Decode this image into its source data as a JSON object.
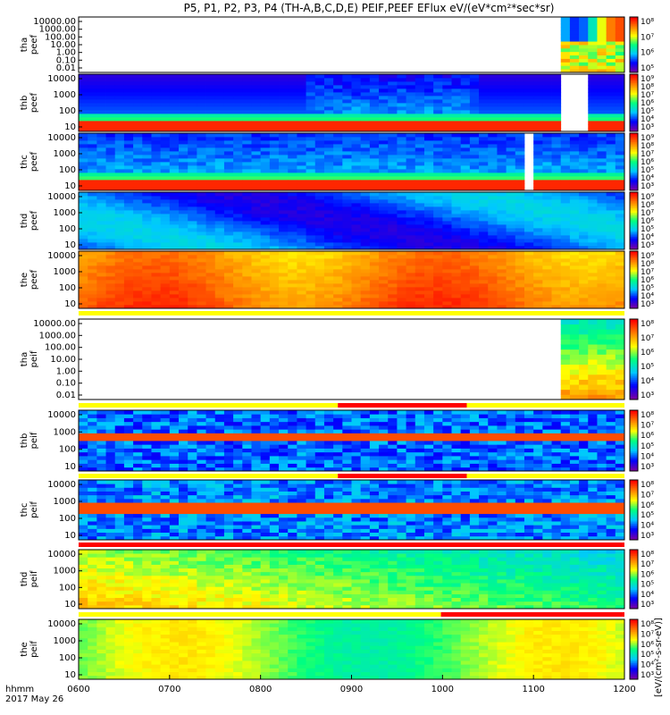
{
  "chart_data": {
    "type": "heatmap",
    "title": "P5, P1, P2, P3, P4 (TH-A,B,C,D,E) PEIF,PEEF EFlux eV/(eV*cm²*sec*sr)",
    "x_tick_labels": [
      "0600",
      "0700",
      "0800",
      "0900",
      "1000",
      "1100",
      "1200"
    ],
    "x_axis_label_line1": "hhmm",
    "x_axis_label_line2": "2017 May 26",
    "xlim_hhmm": [
      "0600",
      "1200"
    ],
    "y_scale": "log",
    "colorbar_scale": "log",
    "colorbar_label": "[eV/(cm²-s-sr-eV)]",
    "colormap": [
      "#7b00a0",
      "#0000ff",
      "#00c8ff",
      "#00ff80",
      "#ffff00",
      "#ff8000",
      "#ff0000"
    ],
    "ytick_sets": {
      "tha": [
        "10000.00",
        "1000.00",
        "100.00",
        "10.00",
        "1.00",
        "0.10",
        "0.01"
      ],
      "std": [
        "10000",
        "1000",
        "100",
        "10"
      ]
    },
    "panels": [
      {
        "label": [
          "tha",
          "peef"
        ],
        "ylim_eV": [
          0.01,
          30000
        ],
        "cbar_ticks": [
          "10⁸",
          "10⁷",
          "10⁶",
          "10⁵"
        ]
      },
      {
        "label": [
          "thb",
          "peef"
        ],
        "ylim_eV": [
          5,
          30000
        ],
        "cbar_ticks": [
          "10⁹",
          "10⁸",
          "10⁷",
          "10⁶",
          "10⁵",
          "10⁴",
          "10³"
        ]
      },
      {
        "label": [
          "thc",
          "peef"
        ],
        "ylim_eV": [
          5,
          30000
        ],
        "cbar_ticks": [
          "10⁹",
          "10⁸",
          "10⁷",
          "10⁶",
          "10⁵",
          "10⁴",
          "10³"
        ]
      },
      {
        "label": [
          "thd",
          "peef"
        ],
        "ylim_eV": [
          5,
          30000
        ],
        "cbar_ticks": [
          "10⁹",
          "10⁸",
          "10⁷",
          "10⁶",
          "10⁵",
          "10⁴",
          "10³"
        ]
      },
      {
        "label": [
          "the",
          "peef"
        ],
        "ylim_eV": [
          5,
          30000
        ],
        "cbar_ticks": [
          "10⁹",
          "10⁸",
          "10⁷",
          "10⁶",
          "10⁵",
          "10⁴",
          "10³"
        ]
      },
      {
        "label": [
          "tha",
          "peif"
        ],
        "ylim_eV": [
          0.01,
          30000
        ],
        "cbar_ticks": [
          "10⁸",
          "10⁷",
          "10⁶",
          "10⁵",
          "10⁴",
          "10³"
        ]
      },
      {
        "label": [
          "thb",
          "peif"
        ],
        "ylim_eV": [
          5,
          30000
        ],
        "cbar_ticks": [
          "10⁸",
          "10⁷",
          "10⁶",
          "10⁵",
          "10⁴",
          "10³"
        ]
      },
      {
        "label": [
          "thc",
          "peif"
        ],
        "ylim_eV": [
          5,
          30000
        ],
        "cbar_ticks": [
          "10⁸",
          "10⁷",
          "10⁶",
          "10⁵",
          "10⁴",
          "10³"
        ]
      },
      {
        "label": [
          "thd",
          "peif"
        ],
        "ylim_eV": [
          5,
          30000
        ],
        "cbar_ticks": [
          "10⁸",
          "10⁷",
          "10⁶",
          "10⁵",
          "10⁴",
          "10³"
        ]
      },
      {
        "label": [
          "the",
          "peif"
        ],
        "ylim_eV": [
          5,
          30000
        ],
        "cbar_ticks": [
          "10⁸",
          "10⁷",
          "10⁶",
          "10⁵",
          "10⁴",
          "10³"
        ]
      }
    ],
    "mode_bars": [
      {
        "after_panel": 5,
        "segments": [
          {
            "from": "0600",
            "to": "1200",
            "color": "#ffff00"
          }
        ]
      },
      {
        "after_panel": 6,
        "segments": [
          {
            "from": "0600",
            "to": "0851",
            "color": "#ffff00"
          },
          {
            "from": "0851",
            "to": "1016",
            "color": "#ff0000"
          },
          {
            "from": "1016",
            "to": "1200",
            "color": "#ffff00"
          }
        ]
      },
      {
        "after_panel": 7,
        "segments": [
          {
            "from": "0600",
            "to": "0851",
            "color": "#ffff00"
          },
          {
            "from": "0851",
            "to": "1016",
            "color": "#ff0000"
          },
          {
            "from": "1016",
            "to": "1200",
            "color": "#ffff00"
          }
        ]
      },
      {
        "after_panel": 8,
        "segments": [
          {
            "from": "0600",
            "to": "1200",
            "color": "#ff0000"
          }
        ]
      },
      {
        "after_panel": 9,
        "segments": [
          {
            "from": "0600",
            "to": "0959",
            "color": "#ffff00"
          },
          {
            "from": "0959",
            "to": "1200",
            "color": "#ff0000"
          }
        ]
      }
    ]
  }
}
